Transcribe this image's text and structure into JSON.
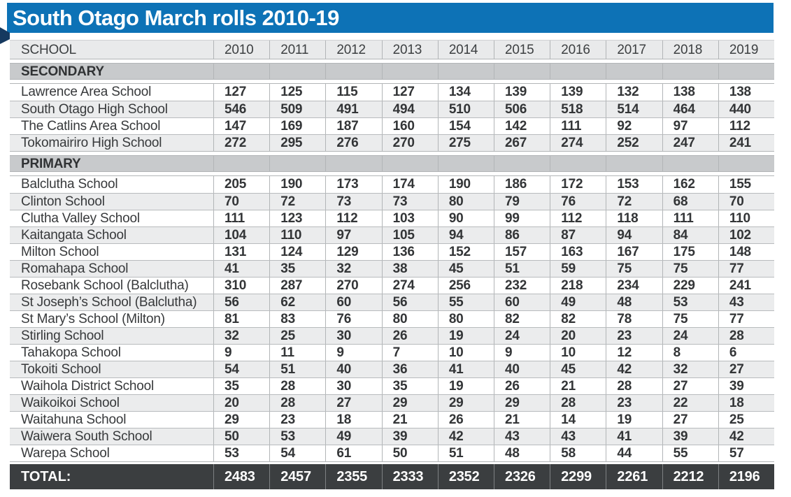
{
  "title": "South Otago March rolls 2010-19",
  "colors": {
    "title_bar_blue": "#0d72b6",
    "ribbon_fold_navy": "#15395f",
    "header_row_gray": "#e9eaeb",
    "section_row_gray": "#c8cacc",
    "alt_row_gray": "#ebeced",
    "total_row_charcoal": "#3b3e40",
    "grid_line_gray": "#b2b5b7",
    "text_dark": "#343638",
    "total_text_white": "#ffffff"
  },
  "chart_data": {
    "type": "table",
    "title": "South Otago March rolls 2010-19",
    "school_column_header": "SCHOOL",
    "year_columns": [
      "2010",
      "2011",
      "2012",
      "2013",
      "2014",
      "2015",
      "2016",
      "2017",
      "2018",
      "2019"
    ],
    "sections": [
      {
        "label": "SECONDARY",
        "rows": [
          {
            "school": "Lawrence Area School",
            "values": [
              127,
              125,
              115,
              127,
              134,
              139,
              139,
              132,
              138,
              138
            ]
          },
          {
            "school": "South Otago High School",
            "values": [
              546,
              509,
              491,
              494,
              510,
              506,
              518,
              514,
              464,
              440
            ]
          },
          {
            "school": "The Catlins Area School",
            "values": [
              147,
              169,
              187,
              160,
              154,
              142,
              111,
              92,
              97,
              112
            ]
          },
          {
            "school": "Tokomairiro High School",
            "values": [
              272,
              295,
              276,
              270,
              275,
              267,
              274,
              252,
              247,
              241
            ]
          }
        ]
      },
      {
        "label": "PRIMARY",
        "rows": [
          {
            "school": "Balclutha School",
            "values": [
              205,
              190,
              173,
              174,
              190,
              186,
              172,
              153,
              162,
              155
            ]
          },
          {
            "school": "Clinton School",
            "values": [
              70,
              72,
              73,
              73,
              80,
              79,
              76,
              72,
              68,
              70
            ]
          },
          {
            "school": "Clutha Valley School",
            "values": [
              111,
              123,
              112,
              103,
              90,
              99,
              112,
              118,
              111,
              110
            ]
          },
          {
            "school": "Kaitangata School",
            "values": [
              104,
              110,
              97,
              105,
              94,
              86,
              87,
              94,
              84,
              102
            ]
          },
          {
            "school": "Milton School",
            "values": [
              131,
              124,
              129,
              136,
              152,
              157,
              163,
              167,
              175,
              148
            ]
          },
          {
            "school": "Romahapa School",
            "values": [
              41,
              35,
              32,
              38,
              45,
              51,
              59,
              75,
              75,
              77
            ]
          },
          {
            "school": "Rosebank School (Balclutha)",
            "values": [
              310,
              287,
              270,
              274,
              256,
              232,
              218,
              234,
              229,
              241
            ]
          },
          {
            "school": "St Joseph’s School (Balclutha)",
            "values": [
              56,
              62,
              60,
              56,
              55,
              60,
              49,
              48,
              53,
              43
            ]
          },
          {
            "school": "St Mary’s School (Milton)",
            "values": [
              81,
              83,
              76,
              80,
              80,
              82,
              82,
              78,
              75,
              77
            ]
          },
          {
            "school": "Stirling School",
            "values": [
              32,
              25,
              30,
              26,
              19,
              24,
              20,
              23,
              24,
              28
            ]
          },
          {
            "school": "Tahakopa School",
            "values": [
              9,
              11,
              9,
              7,
              10,
              9,
              10,
              12,
              8,
              6
            ]
          },
          {
            "school": "Tokoiti School",
            "values": [
              54,
              51,
              40,
              36,
              41,
              40,
              45,
              42,
              32,
              27
            ]
          },
          {
            "school": "Waihola District School",
            "values": [
              35,
              28,
              30,
              35,
              19,
              26,
              21,
              28,
              27,
              39
            ]
          },
          {
            "school": "Waikoikoi School",
            "values": [
              20,
              28,
              27,
              29,
              29,
              29,
              28,
              23,
              22,
              18
            ]
          },
          {
            "school": "Waitahuna School",
            "values": [
              29,
              23,
              18,
              21,
              26,
              21,
              14,
              19,
              27,
              25
            ]
          },
          {
            "school": "Waiwera South School",
            "values": [
              50,
              53,
              49,
              39,
              42,
              43,
              43,
              41,
              39,
              42
            ]
          },
          {
            "school": "Warepa School",
            "values": [
              53,
              54,
              61,
              50,
              51,
              48,
              58,
              44,
              55,
              57
            ]
          }
        ]
      }
    ],
    "total": {
      "label": "TOTAL:",
      "values": [
        2483,
        2457,
        2355,
        2333,
        2352,
        2326,
        2299,
        2261,
        2212,
        2196
      ]
    }
  }
}
